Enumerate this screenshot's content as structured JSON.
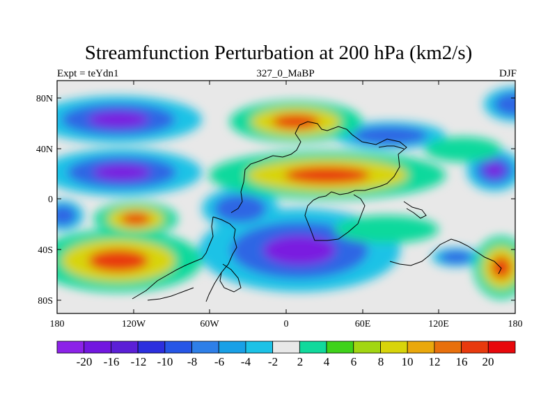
{
  "title": "Streamfunction Perturbation at 200 hPa (km2/s)",
  "subtitle_left": "Expt = teYdn1",
  "subtitle_center": "327_0_MaBP",
  "subtitle_right": "DJF",
  "lat_labels": [
    "80N",
    "40N",
    "0",
    "40S",
    "80S"
  ],
  "lon_labels": [
    "180",
    "120W",
    "60W",
    "0",
    "60E",
    "120E",
    "180"
  ],
  "colorbar": {
    "labels": [
      "-20",
      "-16",
      "-12",
      "-10",
      "-8",
      "-6",
      "-4",
      "-2",
      "2",
      "4",
      "6",
      "8",
      "10",
      "12",
      "16",
      "20"
    ],
    "colors": [
      "#8c22e8",
      "#7217e0",
      "#5b1fd6",
      "#2c2fde",
      "#2656e6",
      "#2e7fe8",
      "#19a0e6",
      "#1cc2e6",
      "#e8e8e8",
      "#11d99c",
      "#3fd21a",
      "#a2d612",
      "#d8d40a",
      "#eaa80c",
      "#e8700c",
      "#e83a0e",
      "#e8080c"
    ]
  },
  "legend_colors": {
    "neg_strong": "#7a1ee0",
    "neg_mid": "#2d66e4",
    "neg_weak": "#1cc2e6",
    "neutral": "#e8e8e8",
    "pos_weak": "#11d99c",
    "pos_mid": "#d8d40a",
    "pos_strong": "#e83a0e"
  }
}
